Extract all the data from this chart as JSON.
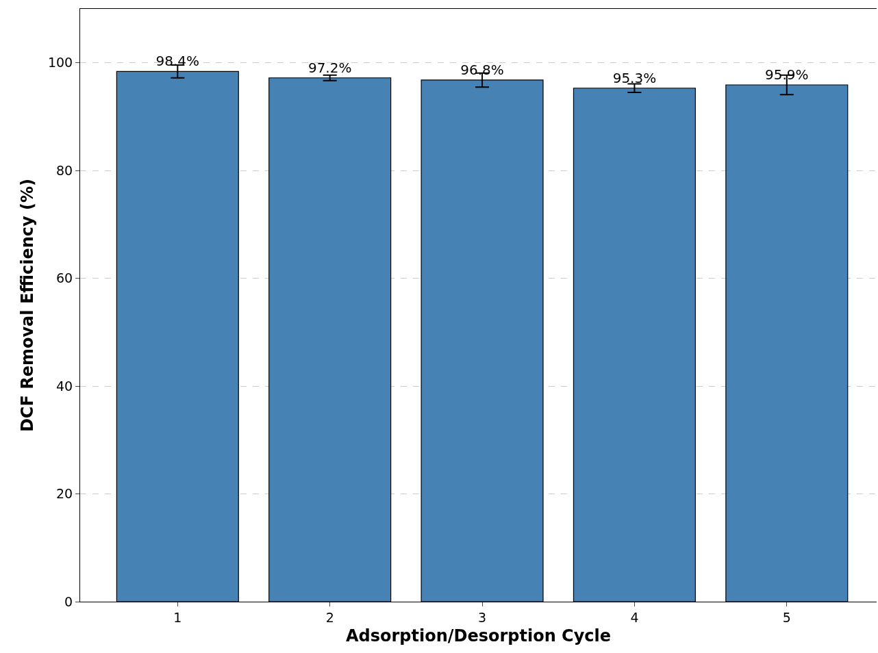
{
  "chart_data": {
    "type": "bar",
    "xlabel": "Adsorption/Desorption Cycle",
    "ylabel": "DCF Removal Efficiency (%)",
    "categories": [
      "1",
      "2",
      "3",
      "4",
      "5"
    ],
    "values": [
      98.4,
      97.2,
      96.8,
      95.3,
      95.9
    ],
    "errors": [
      1.2,
      0.5,
      1.3,
      0.8,
      1.8
    ],
    "value_labels": [
      "98.4%",
      "97.2%",
      "96.8%",
      "95.3%",
      "95.9%"
    ],
    "color": "#4682b4",
    "ylim": [
      0,
      110
    ],
    "yticks": [
      0,
      20,
      40,
      60,
      80,
      100
    ],
    "grid": "y"
  }
}
